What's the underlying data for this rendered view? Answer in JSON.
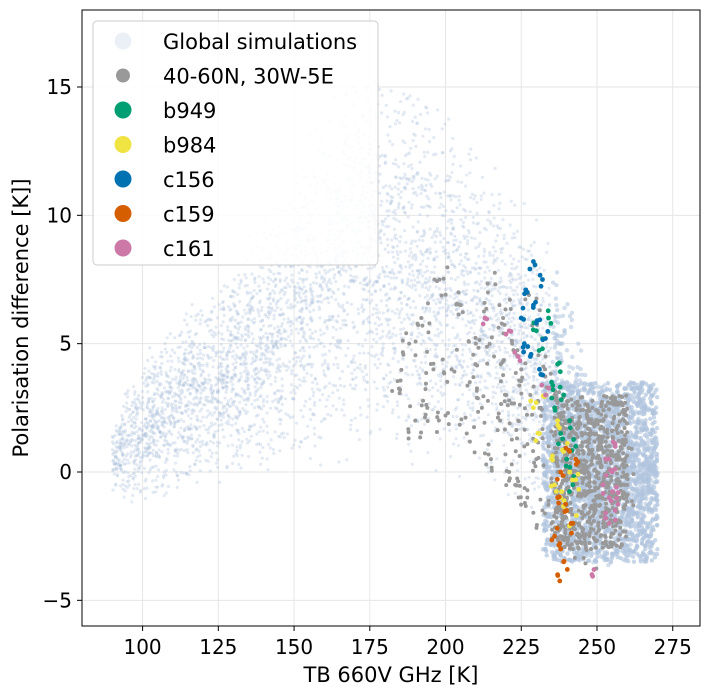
{
  "chart_data": {
    "type": "scatter",
    "xlabel": "TB 660V GHz [K]",
    "ylabel": "Polarisation difference [K]]",
    "xlim": [
      80,
      284
    ],
    "ylim": [
      -6,
      18
    ],
    "x_ticks": [
      100,
      125,
      150,
      175,
      200,
      225,
      250,
      275
    ],
    "y_ticks": [
      -5,
      0,
      5,
      10,
      15
    ],
    "y_tick_labels": [
      "−5",
      "0",
      "5",
      "10",
      "15"
    ],
    "grid": true,
    "legend_position": "top-left",
    "series": [
      {
        "name": "Global simulations",
        "color": "#b0c4de",
        "legend_alpha": 0.25
      },
      {
        "name": "40-60N, 30W-5E",
        "color": "#999999"
      },
      {
        "name": "b949",
        "color": "#009e73"
      },
      {
        "name": "b984",
        "color": "#f0e442"
      },
      {
        "name": "c156",
        "color": "#0072b2"
      },
      {
        "name": "c159",
        "color": "#d55e00"
      },
      {
        "name": "c161",
        "color": "#cc79a7"
      }
    ],
    "global_envelope": {
      "description": "density region of global simulation points",
      "upper": [
        [
          90,
          1.5
        ],
        [
          95,
          3.5
        ],
        [
          105,
          5.5
        ],
        [
          120,
          7
        ],
        [
          130,
          8.5
        ],
        [
          140,
          10
        ],
        [
          150,
          12
        ],
        [
          160,
          14.5
        ],
        [
          170,
          16
        ],
        [
          180,
          16.5
        ],
        [
          190,
          15.5
        ],
        [
          200,
          14.5
        ],
        [
          210,
          13
        ],
        [
          220,
          11.5
        ],
        [
          230,
          10
        ],
        [
          240,
          7.5
        ],
        [
          245,
          5
        ],
        [
          250,
          4
        ],
        [
          255,
          3.5
        ],
        [
          262,
          3
        ],
        [
          270,
          2
        ]
      ],
      "lower": [
        [
          90,
          -1
        ],
        [
          100,
          -1.5
        ],
        [
          110,
          -1
        ],
        [
          120,
          -0.5
        ],
        [
          130,
          -0.5
        ],
        [
          140,
          0
        ],
        [
          150,
          0
        ],
        [
          160,
          0
        ],
        [
          170,
          0.5
        ],
        [
          180,
          0.5
        ],
        [
          190,
          0
        ],
        [
          200,
          0
        ],
        [
          210,
          -0.5
        ],
        [
          220,
          -1
        ],
        [
          230,
          -2
        ],
        [
          240,
          -3.5
        ],
        [
          245,
          -4
        ],
        [
          250,
          -4
        ],
        [
          255,
          -4
        ],
        [
          262,
          -3.5
        ],
        [
          270,
          -2
        ]
      ]
    },
    "regional_points": [
      [
        185,
        3.2
      ],
      [
        188,
        5
      ],
      [
        190,
        2
      ],
      [
        192,
        6
      ],
      [
        194,
        2.5
      ],
      [
        196,
        4
      ],
      [
        198,
        7.5
      ],
      [
        200,
        2.2
      ],
      [
        202,
        4
      ],
      [
        205,
        6.5
      ],
      [
        207,
        1.5
      ],
      [
        208,
        3.5
      ],
      [
        210,
        5
      ],
      [
        212,
        2.5
      ],
      [
        214,
        7
      ],
      [
        215,
        0.5
      ],
      [
        216,
        4.5
      ],
      [
        218,
        2
      ],
      [
        219,
        6
      ],
      [
        220,
        3
      ],
      [
        221,
        0
      ],
      [
        222,
        5
      ],
      [
        223,
        -0.5
      ],
      [
        224,
        2
      ],
      [
        225,
        4
      ],
      [
        226,
        1
      ],
      [
        227,
        -1
      ],
      [
        228,
        3
      ],
      [
        229,
        6.5
      ],
      [
        230,
        0.5
      ],
      [
        231,
        2.5
      ],
      [
        232,
        -1.5
      ],
      [
        233,
        4.5
      ],
      [
        234,
        1
      ],
      [
        235,
        -2
      ],
      [
        236,
        3
      ],
      [
        237,
        0
      ],
      [
        238,
        -2.5
      ],
      [
        239,
        1.5
      ],
      [
        240,
        -1
      ],
      [
        241,
        2
      ],
      [
        242,
        -3
      ],
      [
        243,
        0.5
      ],
      [
        244,
        -1.5
      ],
      [
        245,
        1
      ],
      [
        246,
        -2.5
      ],
      [
        247,
        0
      ],
      [
        248,
        -3
      ],
      [
        249,
        1.5
      ],
      [
        250,
        -1
      ],
      [
        251,
        0.5
      ],
      [
        252,
        -2
      ],
      [
        253,
        1
      ],
      [
        254,
        -1.5
      ],
      [
        255,
        0
      ],
      [
        256,
        -0.5
      ],
      [
        257,
        0.5
      ],
      [
        258,
        -1
      ],
      [
        259,
        0.2
      ],
      [
        260,
        -0.5
      ]
    ],
    "campaign_points": {
      "b949": [
        [
          230,
          5.5
        ],
        [
          232,
          4.8
        ],
        [
          234,
          6
        ],
        [
          235,
          3.5
        ],
        [
          236,
          2.5
        ],
        [
          237,
          4.2
        ],
        [
          238,
          1.5
        ],
        [
          239,
          3
        ],
        [
          240,
          0.5
        ],
        [
          241,
          2
        ],
        [
          242,
          -0.5
        ],
        [
          243,
          1
        ]
      ],
      "b984": [
        [
          229,
          2.5
        ],
        [
          231,
          1.5
        ],
        [
          233,
          3
        ],
        [
          235,
          0.5
        ],
        [
          236,
          -0.5
        ],
        [
          237,
          2
        ],
        [
          238,
          -1
        ],
        [
          239,
          0.8
        ],
        [
          240,
          -1.5
        ],
        [
          241,
          0
        ],
        [
          242,
          -2
        ],
        [
          243,
          -0.3
        ]
      ],
      "c156": [
        [
          225,
          6
        ],
        [
          226,
          5
        ],
        [
          227,
          7
        ],
        [
          228,
          4.5
        ],
        [
          229,
          6.5
        ],
        [
          230,
          5.8
        ],
        [
          231,
          4
        ],
        [
          232,
          7.5
        ],
        [
          233,
          5.2
        ],
        [
          229,
          8.2
        ]
      ],
      "c159": [
        [
          236,
          -2.5
        ],
        [
          237,
          -1
        ],
        [
          238,
          0
        ],
        [
          239,
          -3.5
        ],
        [
          240,
          -1.5
        ],
        [
          241,
          0.8
        ],
        [
          242,
          -2
        ],
        [
          243,
          0.5
        ],
        [
          237,
          -4
        ],
        [
          238,
          -3
        ]
      ],
      "c161": [
        [
          213,
          6
        ],
        [
          221,
          5.5
        ],
        [
          224,
          4.5
        ],
        [
          233,
          3
        ],
        [
          252,
          -0.5
        ],
        [
          253,
          0.5
        ],
        [
          254,
          -1
        ],
        [
          255,
          0
        ],
        [
          256,
          1
        ],
        [
          257,
          -0.8
        ],
        [
          254,
          -2
        ],
        [
          256,
          -1.5
        ],
        [
          249,
          -3.8
        ]
      ]
    }
  }
}
